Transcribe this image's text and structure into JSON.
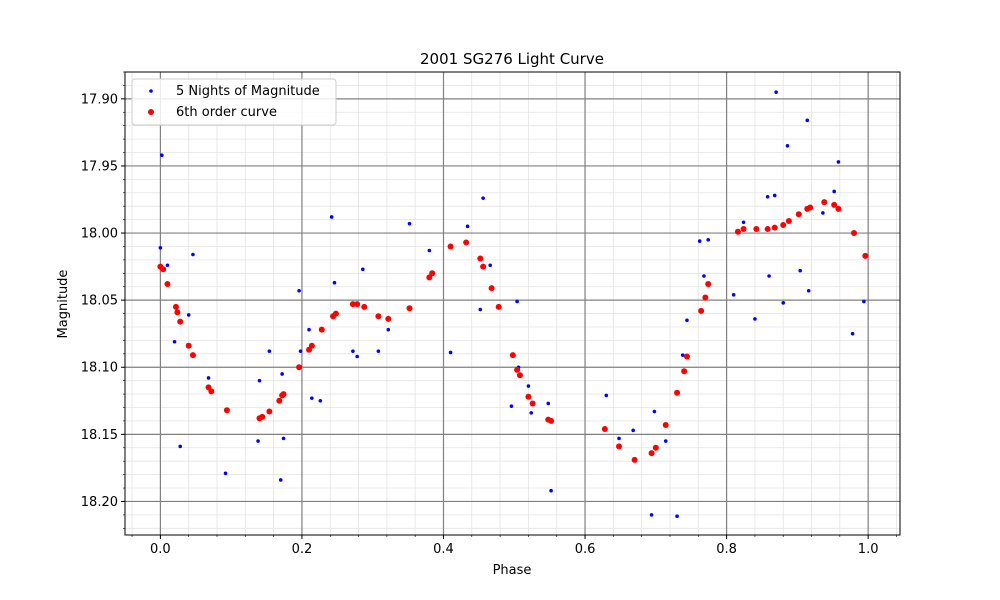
{
  "chart_data": {
    "type": "scatter",
    "title": "2001 SG276 Light Curve",
    "xlabel": "Phase",
    "ylabel": "Magnitude",
    "xlim": [
      -0.05,
      1.045
    ],
    "ylim": [
      17.88,
      18.225
    ],
    "y_inverted": true,
    "x_ticks": [
      0.0,
      0.2,
      0.4,
      0.6,
      0.8,
      1.0
    ],
    "x_tick_labels": [
      "0.0",
      "0.2",
      "0.4",
      "0.6",
      "0.8",
      "1.0"
    ],
    "y_ticks": [
      17.9,
      17.95,
      18.0,
      18.05,
      18.1,
      18.15,
      18.2
    ],
    "y_tick_labels": [
      "17.90",
      "17.95",
      "18.00",
      "18.05",
      "18.10",
      "18.15",
      "18.20"
    ],
    "grid": true,
    "minor_grid": true,
    "legend_position": "top-left",
    "series": [
      {
        "name": "5 Nights of Magnitude",
        "color": "#0000ff",
        "marker": "small-dot",
        "points": [
          [
            0.0,
            18.011
          ],
          [
            0.002,
            17.942
          ],
          [
            0.01,
            18.024
          ],
          [
            0.02,
            18.081
          ],
          [
            0.028,
            18.159
          ],
          [
            0.04,
            18.061
          ],
          [
            0.046,
            18.016
          ],
          [
            0.068,
            18.108
          ],
          [
            0.092,
            18.179
          ],
          [
            0.14,
            18.11
          ],
          [
            0.138,
            18.155
          ],
          [
            0.154,
            18.088
          ],
          [
            0.17,
            18.184
          ],
          [
            0.172,
            18.105
          ],
          [
            0.174,
            18.153
          ],
          [
            0.196,
            18.043
          ],
          [
            0.198,
            18.088
          ],
          [
            0.21,
            18.072
          ],
          [
            0.214,
            18.123
          ],
          [
            0.226,
            18.125
          ],
          [
            0.242,
            17.988
          ],
          [
            0.246,
            18.037
          ],
          [
            0.272,
            18.088
          ],
          [
            0.278,
            18.092
          ],
          [
            0.286,
            18.027
          ],
          [
            0.308,
            18.088
          ],
          [
            0.322,
            18.072
          ],
          [
            0.352,
            17.993
          ],
          [
            0.38,
            18.013
          ],
          [
            0.41,
            18.089
          ],
          [
            0.434,
            17.995
          ],
          [
            0.452,
            18.057
          ],
          [
            0.456,
            17.974
          ],
          [
            0.466,
            18.024
          ],
          [
            0.496,
            18.129
          ],
          [
            0.504,
            18.051
          ],
          [
            0.506,
            18.1
          ],
          [
            0.52,
            18.114
          ],
          [
            0.524,
            18.134
          ],
          [
            0.548,
            18.127
          ],
          [
            0.552,
            18.192
          ],
          [
            0.63,
            18.121
          ],
          [
            0.648,
            18.153
          ],
          [
            0.668,
            18.147
          ],
          [
            0.694,
            18.21
          ],
          [
            0.698,
            18.133
          ],
          [
            0.714,
            18.155
          ],
          [
            0.73,
            18.211
          ],
          [
            0.738,
            18.091
          ],
          [
            0.744,
            18.065
          ],
          [
            0.762,
            18.006
          ],
          [
            0.768,
            18.032
          ],
          [
            0.774,
            18.005
          ],
          [
            0.81,
            18.046
          ],
          [
            0.824,
            17.992
          ],
          [
            0.84,
            18.064
          ],
          [
            0.858,
            17.973
          ],
          [
            0.86,
            18.032
          ],
          [
            0.868,
            17.972
          ],
          [
            0.87,
            17.895
          ],
          [
            0.88,
            18.052
          ],
          [
            0.886,
            17.935
          ],
          [
            0.904,
            18.028
          ],
          [
            0.914,
            17.916
          ],
          [
            0.916,
            18.043
          ],
          [
            0.936,
            17.985
          ],
          [
            0.952,
            17.969
          ],
          [
            0.958,
            17.947
          ],
          [
            0.978,
            18.075
          ],
          [
            0.994,
            18.051
          ]
        ]
      },
      {
        "name": "6th order curve",
        "color": "#ff0000",
        "marker": "dot",
        "points": [
          [
            0.0,
            18.025
          ],
          [
            0.004,
            18.027
          ],
          [
            0.01,
            18.038
          ],
          [
            0.022,
            18.055
          ],
          [
            0.024,
            18.059
          ],
          [
            0.028,
            18.066
          ],
          [
            0.04,
            18.084
          ],
          [
            0.046,
            18.091
          ],
          [
            0.068,
            18.115
          ],
          [
            0.072,
            18.118
          ],
          [
            0.094,
            18.132
          ],
          [
            0.14,
            18.138
          ],
          [
            0.144,
            18.137
          ],
          [
            0.154,
            18.133
          ],
          [
            0.168,
            18.125
          ],
          [
            0.172,
            18.121
          ],
          [
            0.174,
            18.12
          ],
          [
            0.196,
            18.1
          ],
          [
            0.21,
            18.087
          ],
          [
            0.214,
            18.084
          ],
          [
            0.228,
            18.072
          ],
          [
            0.244,
            18.062
          ],
          [
            0.248,
            18.06
          ],
          [
            0.272,
            18.053
          ],
          [
            0.278,
            18.053
          ],
          [
            0.288,
            18.055
          ],
          [
            0.308,
            18.062
          ],
          [
            0.322,
            18.064
          ],
          [
            0.352,
            18.056
          ],
          [
            0.38,
            18.033
          ],
          [
            0.384,
            18.03
          ],
          [
            0.41,
            18.01
          ],
          [
            0.432,
            18.007
          ],
          [
            0.452,
            18.019
          ],
          [
            0.456,
            18.025
          ],
          [
            0.468,
            18.041
          ],
          [
            0.478,
            18.055
          ],
          [
            0.498,
            18.091
          ],
          [
            0.504,
            18.102
          ],
          [
            0.508,
            18.106
          ],
          [
            0.52,
            18.122
          ],
          [
            0.526,
            18.127
          ],
          [
            0.548,
            18.139
          ],
          [
            0.552,
            18.14
          ],
          [
            0.628,
            18.146
          ],
          [
            0.648,
            18.159
          ],
          [
            0.67,
            18.169
          ],
          [
            0.694,
            18.164
          ],
          [
            0.7,
            18.16
          ],
          [
            0.714,
            18.143
          ],
          [
            0.73,
            18.119
          ],
          [
            0.74,
            18.103
          ],
          [
            0.744,
            18.092
          ],
          [
            0.764,
            18.058
          ],
          [
            0.77,
            18.048
          ],
          [
            0.774,
            18.038
          ],
          [
            0.816,
            17.999
          ],
          [
            0.824,
            17.997
          ],
          [
            0.842,
            17.997
          ],
          [
            0.858,
            17.997
          ],
          [
            0.868,
            17.996
          ],
          [
            0.88,
            17.994
          ],
          [
            0.888,
            17.991
          ],
          [
            0.902,
            17.986
          ],
          [
            0.914,
            17.982
          ],
          [
            0.918,
            17.981
          ],
          [
            0.938,
            17.977
          ],
          [
            0.952,
            17.979
          ],
          [
            0.958,
            17.982
          ],
          [
            0.98,
            18.0
          ],
          [
            0.996,
            18.017
          ]
        ]
      }
    ]
  }
}
